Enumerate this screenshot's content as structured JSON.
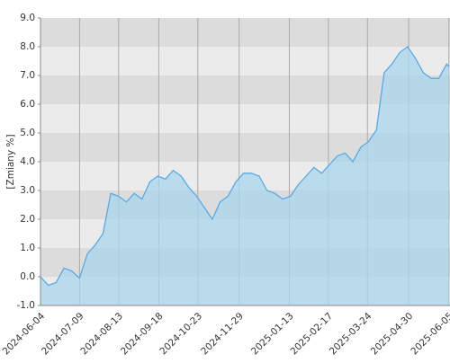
{
  "chart_data": {
    "type": "area",
    "y_label": "[Zmiany %]",
    "x": [
      "2024-06-04",
      "2024-06-11",
      "2024-06-18",
      "2024-06-25",
      "2024-07-02",
      "2024-07-09",
      "2024-07-16",
      "2024-07-23",
      "2024-07-30",
      "2024-08-06",
      "2024-08-13",
      "2024-08-20",
      "2024-08-27",
      "2024-09-03",
      "2024-09-10",
      "2024-09-17",
      "2024-09-24",
      "2024-10-01",
      "2024-10-08",
      "2024-10-15",
      "2024-10-22",
      "2024-10-29",
      "2024-11-05",
      "2024-11-12",
      "2024-11-19",
      "2024-11-26",
      "2024-12-03",
      "2024-12-10",
      "2024-12-17",
      "2024-12-24",
      "2024-12-31",
      "2025-01-07",
      "2025-01-14",
      "2025-01-21",
      "2025-01-28",
      "2025-02-04",
      "2025-02-11",
      "2025-02-18",
      "2025-02-25",
      "2025-03-04",
      "2025-03-11",
      "2025-03-18",
      "2025-03-25",
      "2025-04-01",
      "2025-04-08",
      "2025-04-15",
      "2025-04-22",
      "2025-04-29",
      "2025-05-06",
      "2025-05-13",
      "2025-05-20",
      "2025-05-27",
      "2025-06-03",
      "2025-06-05"
    ],
    "values": [
      0.0,
      -0.3,
      -0.2,
      0.3,
      0.2,
      -0.05,
      0.8,
      1.1,
      1.5,
      2.9,
      2.8,
      2.6,
      2.9,
      2.7,
      3.3,
      3.5,
      3.4,
      3.7,
      3.5,
      3.1,
      2.8,
      2.4,
      2.0,
      2.6,
      2.8,
      3.3,
      3.6,
      3.6,
      3.5,
      3.0,
      2.9,
      2.7,
      2.8,
      3.2,
      3.5,
      3.8,
      3.6,
      3.9,
      4.2,
      4.3,
      4.0,
      4.5,
      4.7,
      5.1,
      7.1,
      7.4,
      7.8,
      8.0,
      7.6,
      7.1,
      6.9,
      6.9,
      7.4,
      7.3
    ],
    "color": "#5aaae6",
    "fill_color": "#a8d6ec",
    "xlim": [
      "2024-06-04",
      "2025-06-06"
    ],
    "xticks": [
      "2024-06-04",
      "2024-07-09",
      "2024-08-13",
      "2024-09-18",
      "2024-10-23",
      "2024-11-29",
      "2025-01-13",
      "2025-02-17",
      "2025-03-24",
      "2025-04-30",
      "2025-06-05"
    ],
    "ylim": [
      -1,
      9
    ],
    "yticks": [
      {
        "value": -1,
        "label": "-1.0"
      },
      {
        "value": 0,
        "label": "0.0"
      },
      {
        "value": 1,
        "label": "1.0"
      },
      {
        "value": 2,
        "label": "2.0"
      },
      {
        "value": 3,
        "label": "3.0"
      },
      {
        "value": 4,
        "label": "4.0"
      },
      {
        "value": 5,
        "label": "5.0"
      },
      {
        "value": 6,
        "label": "6.0"
      },
      {
        "value": 7,
        "label": "7.0"
      },
      {
        "value": 8,
        "label": "8.0"
      },
      {
        "value": 9,
        "label": "9.0"
      }
    ],
    "grid": true,
    "band_colors": [
      "#ebebeb",
      "#dcdcdc"
    ]
  }
}
